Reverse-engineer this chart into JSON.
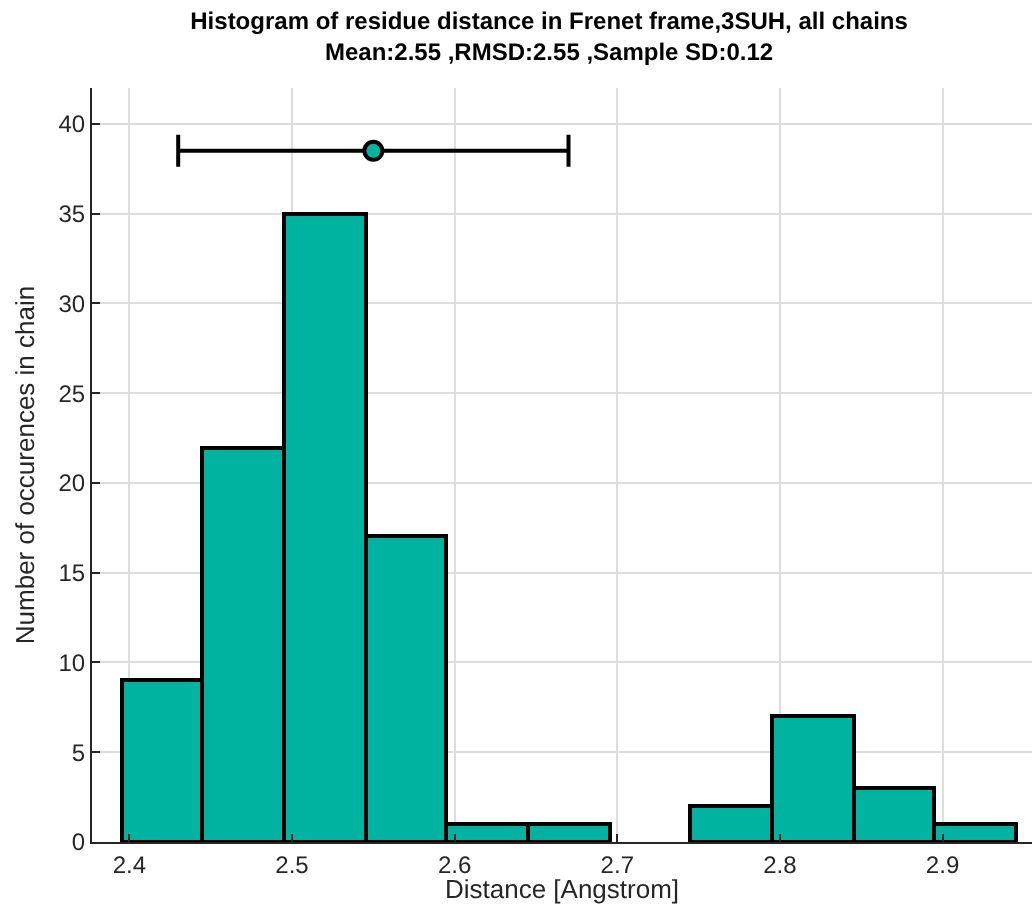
{
  "chart_data": {
    "type": "histogram",
    "title": "Histogram of residue distance in Frenet frame,3SUH, all chains",
    "subtitle": "Mean:2.55 ,RMSD:2.55 ,Sample SD:0.12",
    "xlabel": "Distance [Angstrom]",
    "ylabel": "Number of occurences in chain",
    "series": [
      {
        "color": "#00b2a0",
        "bins": [
          2.395,
          2.445,
          2.495,
          2.545,
          2.595,
          2.645,
          2.695,
          2.745,
          2.795,
          2.845,
          2.895,
          2.945
        ],
        "values": [
          9,
          22,
          35,
          17,
          1,
          1,
          0,
          2,
          7,
          3,
          1
        ]
      },
      {
        "type": "scatter",
        "color": "#00b2a0",
        "x": [
          2.55
        ],
        "values": [
          38.5
        ],
        "xerrors": [
          0.12
        ],
        "marker": "circle"
      }
    ],
    "xlim": [
      2.377,
      2.955
    ],
    "xticks": [
      2.4,
      2.5,
      2.6,
      2.7,
      2.8,
      2.9
    ],
    "ylim": [
      0,
      42
    ],
    "yticks": [
      0,
      5,
      10,
      15,
      20,
      25,
      30,
      35,
      40
    ],
    "grid": true
  }
}
